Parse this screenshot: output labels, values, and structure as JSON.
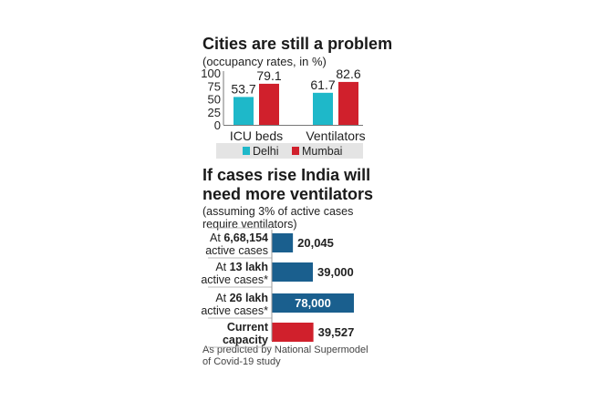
{
  "chart_data": [
    {
      "type": "bar",
      "title": "Cities are still a problem",
      "subtitle": "(occupancy rates, in %)",
      "categories": [
        "ICU beds",
        "Ventilators"
      ],
      "series": [
        {
          "name": "Delhi",
          "color": "#1eb8c9",
          "values": [
            53.7,
            61.7
          ]
        },
        {
          "name": "Mumbai",
          "color": "#d0202c",
          "values": [
            79.1,
            82.6
          ]
        }
      ],
      "yticks": [
        "100",
        "75",
        "50",
        "25",
        "0"
      ],
      "ylim": [
        0,
        100
      ],
      "legend": "bottom"
    },
    {
      "type": "bar",
      "orientation": "horizontal",
      "title": "If cases rise India will need more ventilators",
      "subtitle": "(assuming 3% of active cases require ventilators)",
      "rows": [
        {
          "pre": "At ",
          "bold": "6,68,154",
          "label2": "active cases",
          "value": 20045,
          "value_label": "20,045",
          "color": "#1a5f8e",
          "inside": false
        },
        {
          "pre": "At ",
          "bold": "13 lakh",
          "label2": "active cases*",
          "value": 39000,
          "value_label": "39,000",
          "color": "#1a5f8e",
          "inside": false
        },
        {
          "pre": "At ",
          "bold": "26 lakh",
          "label2": "active cases*",
          "value": 78000,
          "value_label": "78,000",
          "color": "#1a5f8e",
          "inside": true
        },
        {
          "pre": "",
          "bold": "Current",
          "label2": "capacity",
          "value": 39527,
          "value_label": "39,527",
          "color": "#d0202c",
          "inside": false,
          "bold_both": true
        }
      ],
      "xlim": [
        0,
        78000
      ],
      "note": "As predicted by National Supermodel of Covid-19 study"
    }
  ]
}
